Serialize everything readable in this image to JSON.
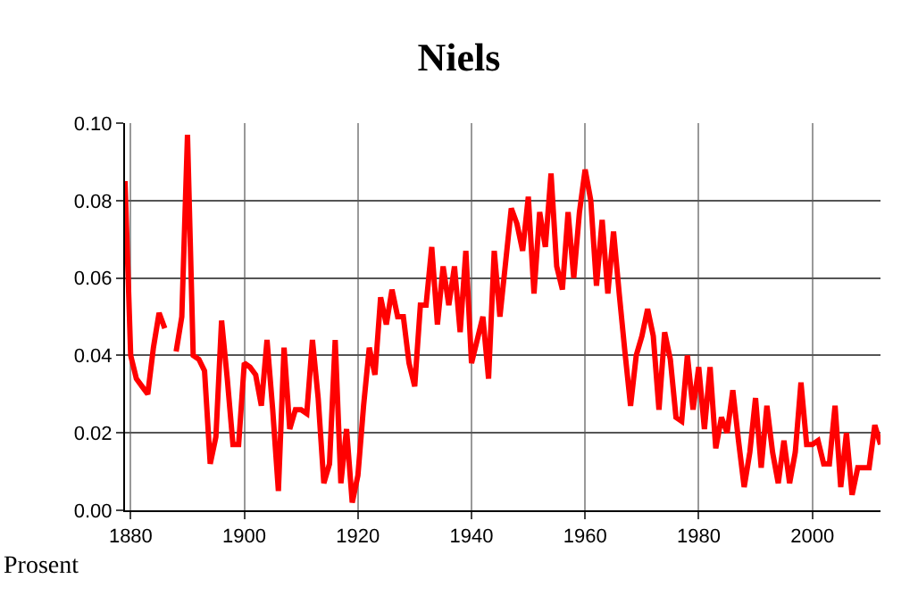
{
  "chart_data": {
    "type": "line",
    "title": "Niels",
    "ylabel": "Prosent",
    "x": [
      1879,
      1880,
      1881,
      1882,
      1883,
      1884,
      1885,
      1886,
      1887,
      1888,
      1889,
      1890,
      1891,
      1892,
      1893,
      1894,
      1895,
      1896,
      1897,
      1898,
      1899,
      1900,
      1901,
      1902,
      1903,
      1904,
      1905,
      1906,
      1907,
      1908,
      1909,
      1910,
      1911,
      1912,
      1913,
      1914,
      1915,
      1916,
      1917,
      1918,
      1919,
      1920,
      1921,
      1922,
      1923,
      1924,
      1925,
      1926,
      1927,
      1928,
      1929,
      1930,
      1931,
      1932,
      1933,
      1934,
      1935,
      1936,
      1937,
      1938,
      1939,
      1940,
      1941,
      1942,
      1943,
      1944,
      1945,
      1946,
      1947,
      1948,
      1949,
      1950,
      1951,
      1952,
      1953,
      1954,
      1955,
      1956,
      1957,
      1958,
      1959,
      1960,
      1961,
      1962,
      1963,
      1964,
      1965,
      1966,
      1967,
      1968,
      1969,
      1970,
      1971,
      1972,
      1973,
      1974,
      1975,
      1976,
      1977,
      1978,
      1979,
      1980,
      1981,
      1982,
      1983,
      1984,
      1985,
      1986,
      1987,
      1988,
      1989,
      1990,
      1991,
      1992,
      1993,
      1994,
      1995,
      1996,
      1997,
      1998,
      1999,
      2000,
      2001,
      2002,
      2003,
      2004,
      2005,
      2006,
      2007,
      2008,
      2009,
      2010,
      2011,
      2012
    ],
    "series": [
      {
        "color": "#ff0000",
        "values": [
          0.085,
          0.04,
          0.034,
          0.032,
          0.03,
          0.042,
          0.051,
          0.047,
          null,
          0.041,
          0.05,
          0.097,
          0.04,
          0.039,
          0.036,
          0.012,
          0.019,
          0.049,
          0.034,
          0.017,
          0.017,
          0.038,
          0.037,
          0.035,
          0.027,
          0.044,
          0.026,
          0.005,
          0.042,
          0.021,
          0.026,
          0.026,
          0.025,
          0.044,
          0.029,
          0.007,
          0.012,
          0.044,
          0.007,
          0.021,
          0.002,
          0.009,
          0.027,
          0.042,
          0.035,
          0.055,
          0.048,
          0.057,
          0.05,
          0.05,
          0.038,
          0.032,
          0.053,
          0.053,
          0.068,
          0.048,
          0.063,
          0.053,
          0.063,
          0.046,
          0.067,
          0.038,
          0.044,
          0.05,
          0.034,
          0.067,
          0.05,
          0.064,
          0.078,
          0.074,
          0.067,
          0.081,
          0.056,
          0.077,
          0.068,
          0.087,
          0.063,
          0.057,
          0.077,
          0.06,
          0.077,
          0.088,
          0.08,
          0.058,
          0.075,
          0.056,
          0.072,
          0.056,
          0.041,
          0.027,
          0.04,
          0.045,
          0.052,
          0.045,
          0.026,
          0.046,
          0.039,
          0.024,
          0.023,
          0.04,
          0.026,
          0.037,
          0.021,
          0.037,
          0.016,
          0.024,
          0.02,
          0.031,
          0.018,
          0.006,
          0.015,
          0.029,
          0.011,
          0.027,
          0.015,
          0.007,
          0.018,
          0.007,
          0.015,
          0.033,
          0.017,
          0.017,
          0.018,
          0.012,
          0.012,
          0.027,
          0.006,
          0.02,
          0.004,
          0.011,
          0.011,
          0.011,
          0.022,
          0.017
        ]
      }
    ],
    "xlim": [
      1879,
      2012
    ],
    "xticks": [
      1880,
      1900,
      1920,
      1940,
      1960,
      1980,
      2000
    ],
    "ylim": [
      0,
      0.1
    ],
    "yticks": [
      {
        "value": 0,
        "label": "0.00"
      },
      {
        "value": 0.02,
        "label": "0.02"
      },
      {
        "value": 0.04,
        "label": "0.04"
      },
      {
        "value": 0.06,
        "label": "0.06"
      },
      {
        "value": 0.08,
        "label": "0.08"
      },
      {
        "value": 0.1,
        "label": "0.10"
      }
    ],
    "grid": true,
    "marker": "none",
    "line_style": "solid"
  }
}
